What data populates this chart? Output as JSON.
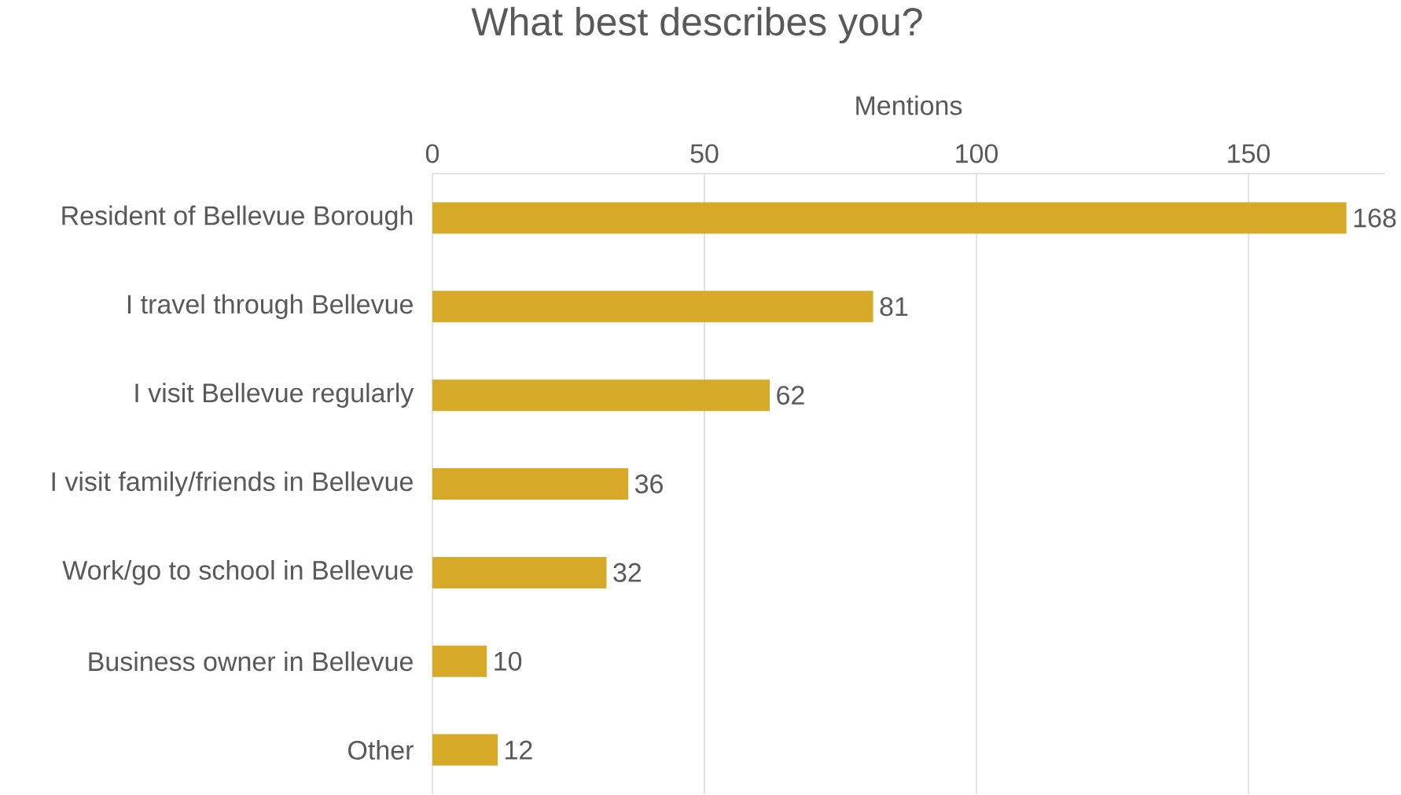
{
  "chart_data": {
    "type": "bar",
    "orientation": "horizontal",
    "title": "What best describes you?",
    "xlabel": "Mentions",
    "categories": [
      "Resident of Bellevue Borough",
      "I travel through Bellevue",
      "I visit Bellevue regularly",
      "I visit family/friends in Bellevue",
      "Work/go to school in Bellevue",
      "Business owner in Bellevue",
      "Other"
    ],
    "values": [
      168,
      81,
      62,
      36,
      32,
      10,
      12
    ],
    "color": "#d6aa28",
    "xlim": [
      0,
      175
    ],
    "xticks": [
      0,
      50,
      100,
      150
    ],
    "grid": "x",
    "data_labels": true
  }
}
